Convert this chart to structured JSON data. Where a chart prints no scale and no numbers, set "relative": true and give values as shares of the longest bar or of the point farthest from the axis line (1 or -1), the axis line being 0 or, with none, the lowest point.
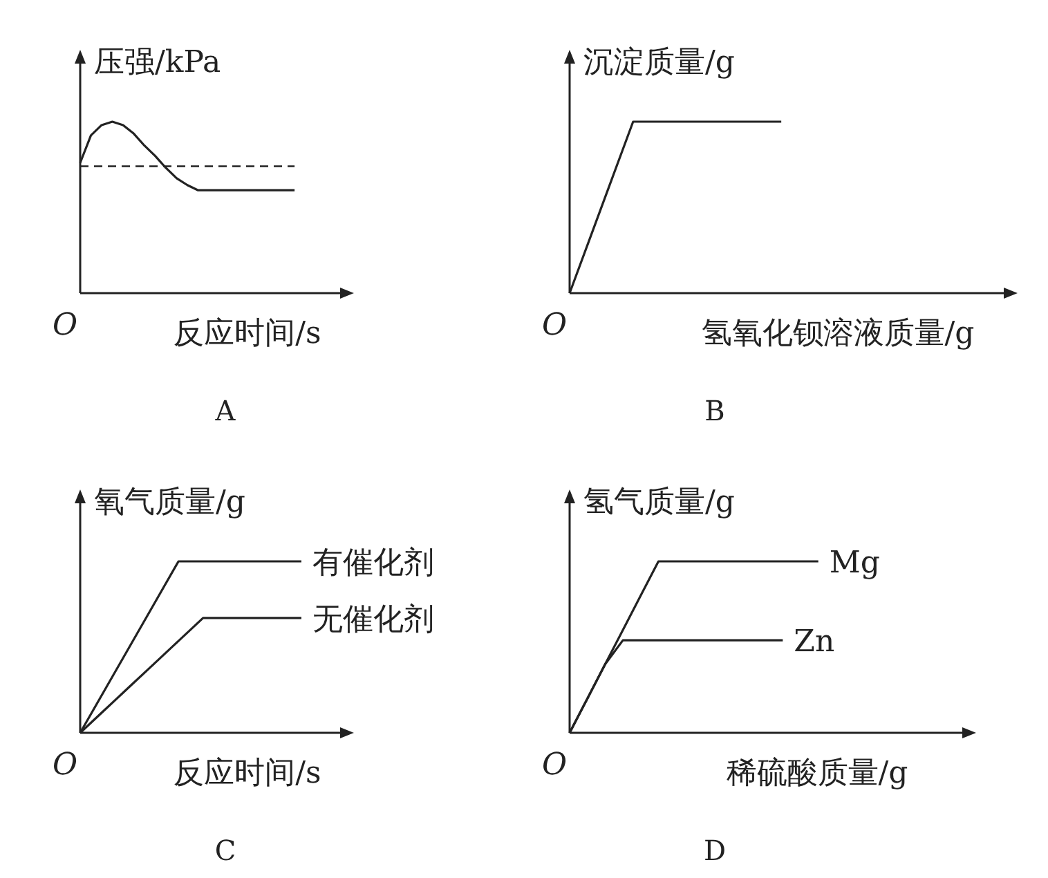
{
  "chart_data": [
    {
      "type": "line",
      "title": "A",
      "xlabel": "反应时间/s",
      "ylabel": "压强/kPa",
      "relative": true,
      "annotations": [
        "O"
      ],
      "categories": [
        null,
        null,
        null,
        null,
        null,
        null,
        null,
        null,
        null,
        null,
        null,
        null,
        null,
        null,
        null,
        null,
        null,
        null,
        null,
        null,
        null
      ],
      "series": [
        {
          "color": "#222222",
          "values": [
            0.76,
            0.92,
            0.98,
            1,
            0.98,
            0.93,
            0.86,
            0.8,
            0.73,
            0.67,
            0.63,
            0.6,
            0.6,
            0.6,
            0.6,
            0.6,
            0.6,
            0.6,
            0.6,
            0.6,
            0.6
          ]
        }
      ],
      "ref_lines": [
        {
          "axis": "y",
          "value": 0.74,
          "color": "#222222",
          "line_style": "dashed"
        }
      ]
    },
    {
      "type": "line",
      "title": "B",
      "xlabel": "氢氧化钡溶液质量/g",
      "ylabel": "沉淀质量/g",
      "relative": true,
      "annotations": [
        "O"
      ],
      "categories": [
        null,
        null,
        null,
        null,
        null,
        null,
        null,
        null,
        null,
        null,
        null
      ],
      "series": [
        {
          "color": "#222222",
          "values": [
            0,
            0.333,
            0.667,
            1,
            1,
            1,
            1,
            1,
            1,
            1,
            1
          ]
        }
      ]
    },
    {
      "type": "line",
      "title": "C",
      "xlabel": "反应时间/s",
      "ylabel": "氧气质量/g",
      "relative": true,
      "annotations": [
        "O"
      ],
      "categories": [
        null,
        null,
        null,
        null,
        null,
        null,
        null,
        null,
        null,
        null
      ],
      "series": [
        {
          "name": "有催化剂",
          "color": "#222222",
          "values": [
            0,
            0.25,
            0.5,
            0.75,
            1,
            1,
            1,
            1,
            1,
            1
          ]
        },
        {
          "name": "无催化剂",
          "color": "#222222",
          "values": [
            0,
            0.134,
            0.268,
            0.402,
            0.536,
            0.67,
            0.67,
            0.67,
            0.67,
            0.67
          ]
        }
      ]
    },
    {
      "type": "line",
      "title": "D",
      "xlabel": "稀硫酸质量/g",
      "ylabel": "氢气质量/g",
      "relative": true,
      "annotations": [
        "O"
      ],
      "categories": [
        null,
        null,
        null,
        null,
        null,
        null,
        null,
        null,
        null,
        null,
        null,
        null,
        null,
        null,
        null
      ],
      "series": [
        {
          "name": "Mg",
          "color": "#222222",
          "values": [
            0,
            0.2,
            0.4,
            0.6,
            0.8,
            1,
            1,
            1,
            1,
            1,
            1,
            1,
            1,
            1,
            1
          ]
        },
        {
          "name": "Zn",
          "color": "#222222",
          "values": [
            0,
            0.2,
            0.4,
            0.54,
            0.54,
            0.54,
            0.54,
            0.54,
            0.54,
            0.54,
            0.54,
            0.54,
            0.54,
            null,
            null
          ]
        }
      ]
    }
  ]
}
